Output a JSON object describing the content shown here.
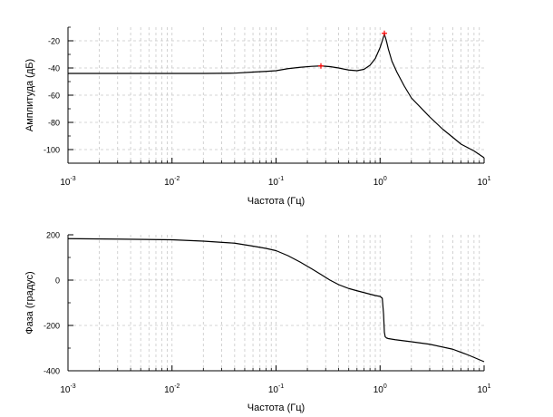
{
  "chart_data": [
    {
      "type": "line",
      "x_scale": "log",
      "xlim": [
        0.001,
        10
      ],
      "ylim": [
        -110,
        -10
      ],
      "xlabel": "Частота (Гц)",
      "ylabel": "Амплитуда (дБ)",
      "grid": true,
      "x_ticks": [
        {
          "value": 0.001,
          "base": "10",
          "exp": "-3"
        },
        {
          "value": 0.01,
          "base": "10",
          "exp": "-2"
        },
        {
          "value": 0.1,
          "base": "10",
          "exp": "-1"
        },
        {
          "value": 1,
          "base": "10",
          "exp": "0"
        },
        {
          "value": 10,
          "base": "10",
          "exp": "1"
        }
      ],
      "y_ticks": [
        {
          "value": -20,
          "label": "-20"
        },
        {
          "value": -40,
          "label": "-40"
        },
        {
          "value": -60,
          "label": "-60"
        },
        {
          "value": -80,
          "label": "-80"
        },
        {
          "value": -100,
          "label": "-100"
        }
      ],
      "series": [
        {
          "color": "#000000",
          "x": [
            0.001,
            0.005,
            0.02,
            0.04,
            0.06,
            0.08,
            0.1,
            0.13,
            0.17,
            0.22,
            0.27,
            0.33,
            0.4,
            0.5,
            0.6,
            0.7,
            0.8,
            0.9,
            1.0,
            1.05,
            1.1,
            1.15,
            1.2,
            1.3,
            1.45,
            1.7,
            2,
            3,
            4,
            5,
            6,
            8,
            10
          ],
          "y": [
            -44,
            -44,
            -44,
            -43.8,
            -43,
            -42.5,
            -42,
            -40.5,
            -39.5,
            -38.8,
            -38.5,
            -39,
            -40,
            -41.5,
            -42,
            -41,
            -38,
            -33,
            -25,
            -20,
            -15,
            -20,
            -26,
            -35,
            -43,
            -53,
            -62,
            -76,
            -85,
            -91,
            -96,
            -101,
            -106
          ]
        }
      ],
      "markers": [
        {
          "x": 0.27,
          "y": -38.5,
          "color": "#ff0000"
        },
        {
          "x": 1.1,
          "y": -14.5,
          "color": "#ff0000"
        }
      ]
    },
    {
      "type": "line",
      "x_scale": "log",
      "xlim": [
        0.001,
        10
      ],
      "ylim": [
        -400,
        200
      ],
      "xlabel": "Частота (Гц)",
      "ylabel": "Фаза (градус)",
      "grid": true,
      "x_ticks": [
        {
          "value": 0.001,
          "base": "10",
          "exp": "-3"
        },
        {
          "value": 0.01,
          "base": "10",
          "exp": "-2"
        },
        {
          "value": 0.1,
          "base": "10",
          "exp": "-1"
        },
        {
          "value": 1,
          "base": "10",
          "exp": "0"
        },
        {
          "value": 10,
          "base": "10",
          "exp": "1"
        }
      ],
      "y_ticks": [
        {
          "value": 200,
          "label": "200"
        },
        {
          "value": 0,
          "label": "0"
        },
        {
          "value": -200,
          "label": "-200"
        },
        {
          "value": -400,
          "label": "-400"
        }
      ],
      "series": [
        {
          "color": "#000000",
          "x": [
            0.001,
            0.003,
            0.01,
            0.02,
            0.04,
            0.06,
            0.08,
            0.1,
            0.13,
            0.17,
            0.22,
            0.27,
            0.33,
            0.4,
            0.5,
            0.6,
            0.7,
            0.8,
            0.9,
            1.0,
            1.05,
            1.08,
            1.1,
            1.12,
            1.15,
            1.2,
            1.4,
            2,
            3,
            5,
            7,
            10
          ],
          "y": [
            183,
            181,
            178,
            172,
            163,
            150,
            140,
            130,
            108,
            80,
            50,
            25,
            0,
            -20,
            -37,
            -47,
            -55,
            -62,
            -68,
            -72,
            -80,
            -150,
            -230,
            -250,
            -255,
            -258,
            -263,
            -272,
            -283,
            -305,
            -330,
            -360
          ]
        }
      ],
      "markers": []
    }
  ]
}
